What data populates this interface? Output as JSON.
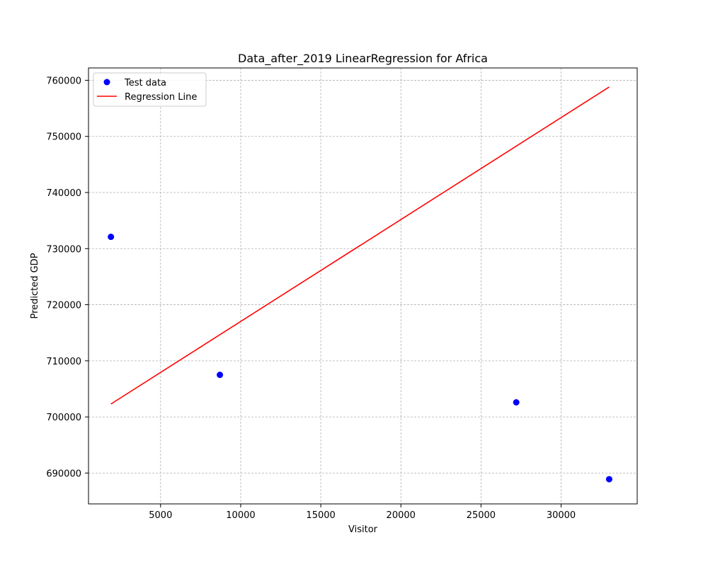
{
  "chart_data": {
    "type": "scatter",
    "title": "Data_after_2019 LinearRegression for Africa",
    "xlabel": "Visitor",
    "ylabel": "Predicted GDP",
    "xlim": [
      500,
      34750
    ],
    "ylim": [
      684500,
      762200
    ],
    "xticks": [
      5000,
      10000,
      15000,
      20000,
      25000,
      30000
    ],
    "yticks": [
      690000,
      700000,
      710000,
      720000,
      730000,
      740000,
      750000,
      760000
    ],
    "grid": true,
    "legend_position": "upper-left",
    "series": [
      {
        "name": "Test data",
        "kind": "scatter",
        "color": "#0000ff",
        "points": [
          {
            "x": 1900,
            "y": 732100
          },
          {
            "x": 8700,
            "y": 707500
          },
          {
            "x": 27200,
            "y": 702600
          },
          {
            "x": 33000,
            "y": 688900
          }
        ]
      },
      {
        "name": "Regression Line",
        "kind": "line",
        "color": "#ff0000",
        "points": [
          {
            "x": 1900,
            "y": 702300
          },
          {
            "x": 33000,
            "y": 758800
          }
        ]
      }
    ]
  }
}
